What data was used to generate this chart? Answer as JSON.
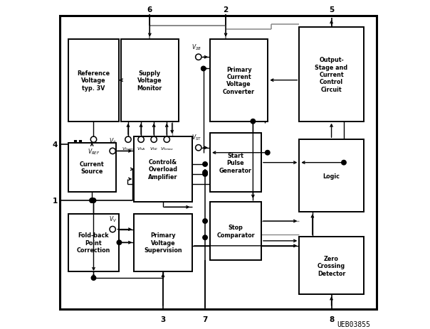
{
  "fig_width": 6.04,
  "fig_height": 4.64,
  "dpi": 100,
  "bg": "#ffffff",
  "watermark": "UEB03855",
  "outer_border": [
    0.03,
    0.06,
    0.96,
    0.89
  ],
  "blocks": {
    "ref_vol": [
      0.055,
      0.63,
      0.155,
      0.25,
      "Reference\nVoltage\ntyp. 3V"
    ],
    "sup_mon": [
      0.215,
      0.63,
      0.175,
      0.25,
      "Supply\nVoltage\nMonitor"
    ],
    "cur_src": [
      0.055,
      0.415,
      0.145,
      0.15,
      "Current\nSource"
    ],
    "ctrl_amp": [
      0.255,
      0.385,
      0.175,
      0.2,
      "Control&\nOverload\nAmplifier"
    ],
    "fold_back": [
      0.055,
      0.175,
      0.155,
      0.175,
      "Fold-back\nPoint\nCorrection"
    ],
    "prim_vsup": [
      0.255,
      0.175,
      0.175,
      0.175,
      "Primary\nVoltage\nSupervision"
    ],
    "prim_conv": [
      0.485,
      0.63,
      0.175,
      0.25,
      "Primary\nCurrent\nVoltage\nConverter"
    ],
    "start_pulse": [
      0.485,
      0.415,
      0.155,
      0.18,
      "Start\nPulse\nGenerator"
    ],
    "stop_comp": [
      0.485,
      0.21,
      0.155,
      0.175,
      "Stop\nComparator"
    ],
    "out_stage": [
      0.755,
      0.63,
      0.195,
      0.285,
      "Output-\nStage and\nCurrent\nControl\nCircuit"
    ],
    "logic": [
      0.755,
      0.355,
      0.195,
      0.22,
      "Logic"
    ],
    "zero_cross": [
      0.755,
      0.105,
      0.195,
      0.175,
      "Zero\nCrossing\nDetector"
    ]
  }
}
